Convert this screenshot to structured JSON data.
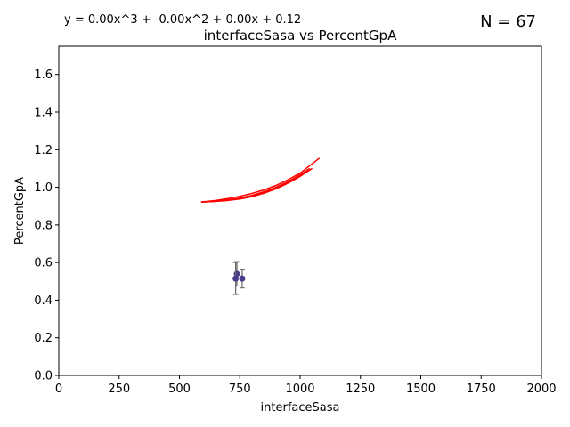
{
  "chart_data": {
    "type": "scatter",
    "title": "interfaceSasa vs PercentGpA",
    "xlabel": "interfaceSasa",
    "ylabel": "PercentGpA",
    "xlim": [
      0,
      2000
    ],
    "ylim": [
      0,
      1.75
    ],
    "xticks": [
      0,
      250,
      500,
      750,
      1000,
      1250,
      1500,
      1750,
      2000
    ],
    "yticks": [
      0.0,
      0.2,
      0.4,
      0.6,
      0.8,
      1.0,
      1.2,
      1.4,
      1.6
    ],
    "xtick_labels": [
      "0",
      "250",
      "500",
      "750",
      "1000",
      "1250",
      "1500",
      "1750",
      "2000"
    ],
    "ytick_labels": [
      "0.0",
      "0.2",
      "0.4",
      "0.6",
      "0.8",
      "1.0",
      "1.2",
      "1.4",
      "1.6"
    ],
    "grid": false,
    "equation": "y = 0.00x^3 + -0.00x^2 + 0.00x + 0.12",
    "count_label": "N = 67",
    "points": [
      {
        "x": 738,
        "y": 0.54,
        "err": 0.065
      },
      {
        "x": 733,
        "y": 0.515,
        "err": 0.085
      },
      {
        "x": 760,
        "y": 0.515,
        "err": 0.05
      }
    ],
    "fit_curves": [
      [
        [
          590,
          0.922
        ],
        [
          650,
          0.925
        ],
        [
          700,
          0.93
        ],
        [
          750,
          0.938
        ],
        [
          800,
          0.95
        ],
        [
          850,
          0.968
        ],
        [
          900,
          0.992
        ],
        [
          950,
          1.022
        ],
        [
          1000,
          1.058
        ],
        [
          1050,
          1.1
        ]
      ],
      [
        [
          590,
          0.922
        ],
        [
          650,
          0.926
        ],
        [
          700,
          0.933
        ],
        [
          750,
          0.943
        ],
        [
          800,
          0.957
        ],
        [
          850,
          0.976
        ],
        [
          900,
          1.0
        ],
        [
          950,
          1.03
        ],
        [
          1000,
          1.066
        ],
        [
          1040,
          1.1
        ]
      ],
      [
        [
          590,
          0.922
        ],
        [
          650,
          0.93
        ],
        [
          700,
          0.94
        ],
        [
          750,
          0.952
        ],
        [
          800,
          0.967
        ],
        [
          850,
          0.986
        ],
        [
          900,
          1.01
        ],
        [
          950,
          1.04
        ],
        [
          1000,
          1.075
        ],
        [
          1080,
          1.155
        ]
      ],
      [
        [
          600,
          0.922
        ],
        [
          700,
          0.932
        ],
        [
          800,
          0.952
        ],
        [
          900,
          0.995
        ],
        [
          1000,
          1.06
        ],
        [
          1030,
          1.085
        ]
      ]
    ],
    "colors": {
      "points": "#483d8b",
      "errorbars": "#666666",
      "fit": "#ff0000",
      "axes": "#000000"
    }
  }
}
